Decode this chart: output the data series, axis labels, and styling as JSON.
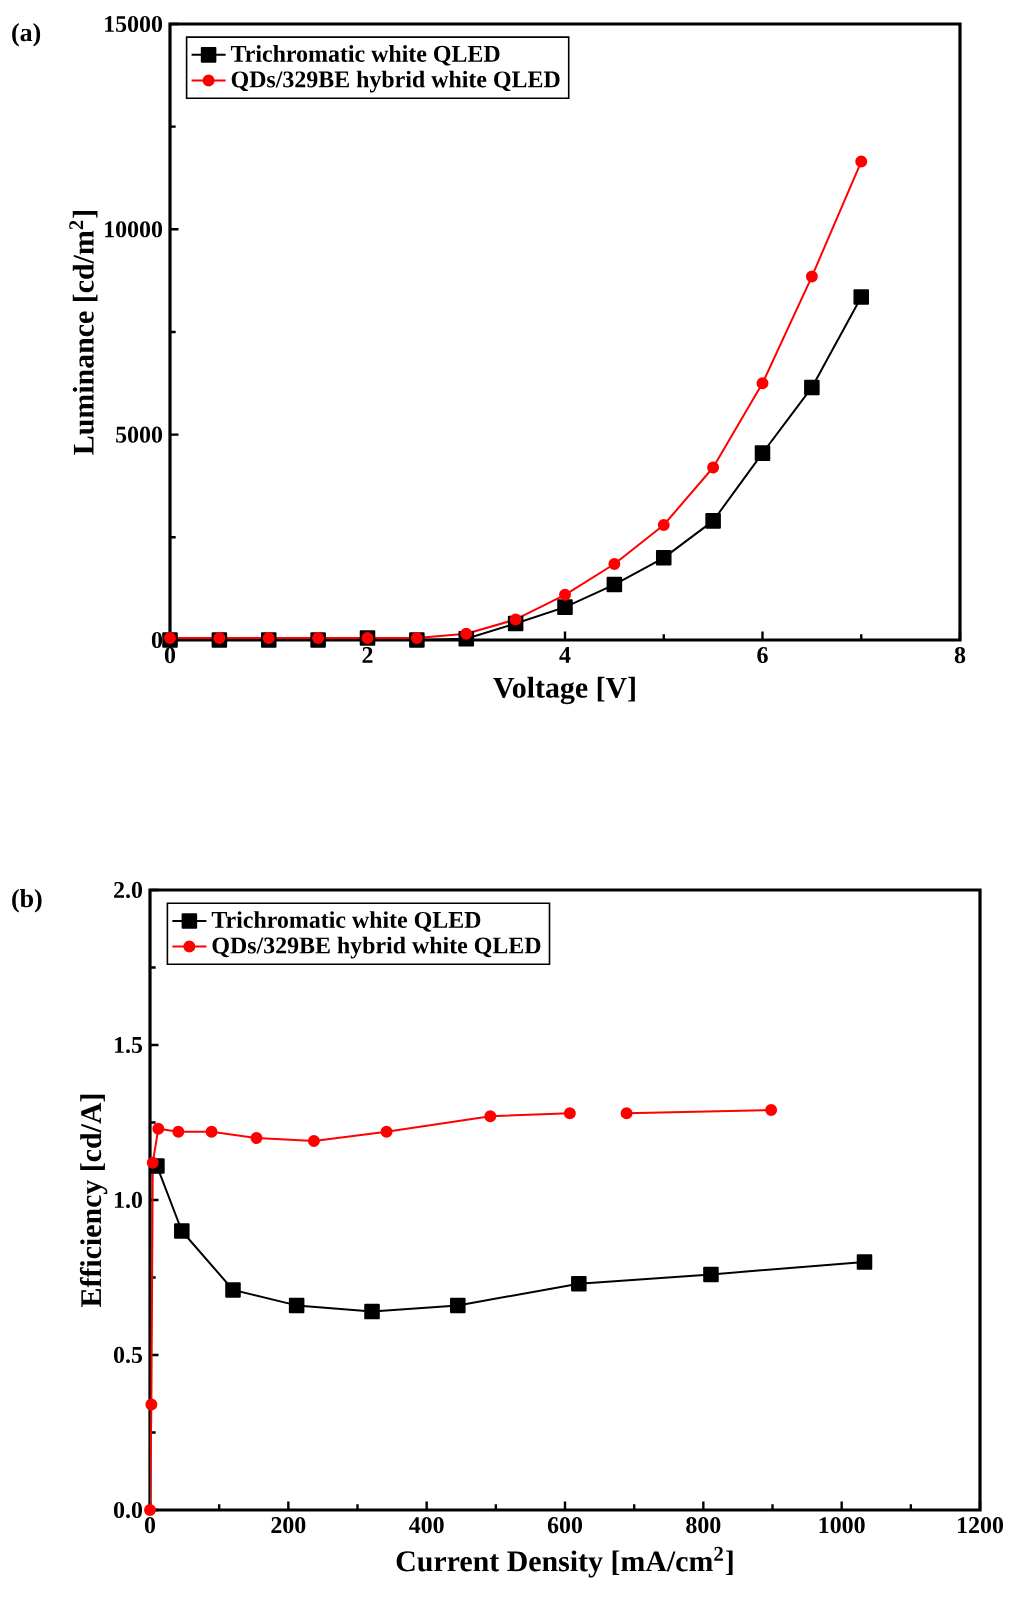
{
  "chart_data": [
    {
      "type": "line",
      "title": "(a)",
      "xlabel": "Voltage [V]",
      "ylabel": "Luminance [cd/m$^{2}$]",
      "xlim": [
        0,
        8
      ],
      "ylim": [
        0,
        15000
      ],
      "xticks": [
        0,
        2,
        4,
        6,
        8
      ],
      "yticks": [
        0,
        5000,
        10000,
        15000
      ],
      "legend": "top left",
      "grid": false,
      "x": [
        0,
        0.5,
        1,
        1.5,
        2,
        2.5,
        3,
        3.5,
        4,
        4.5,
        5,
        5.5,
        6,
        6.5,
        7
      ],
      "series": [
        {
          "name": "Trichromatic white QLED",
          "color": "#000000",
          "marker": "square",
          "values": [
            0,
            0,
            0,
            0,
            50,
            0,
            30,
            400,
            800,
            1350,
            2000,
            2900,
            4550,
            6150,
            8350
          ]
        },
        {
          "name": "QDs/329BE hybrid white QLED",
          "color": "#ff0000",
          "marker": "circle",
          "values": [
            50,
            50,
            50,
            50,
            50,
            50,
            150,
            500,
            1100,
            1850,
            2800,
            4200,
            6250,
            8850,
            11650
          ]
        }
      ]
    },
    {
      "type": "line",
      "title": "(b)",
      "xlabel": "Current Density [mA/cm$^{2}$]",
      "ylabel": "Efficiency [cd/A]",
      "xlim": [
        0,
        1200
      ],
      "ylim": [
        0,
        2
      ],
      "xticks": [
        0,
        200,
        400,
        600,
        800,
        1000,
        1200
      ],
      "yticks": [
        {
          "value": 0,
          "label": "0.0"
        },
        {
          "value": 0.5,
          "label": "0.5"
        },
        {
          "value": 1,
          "label": "1.0"
        },
        {
          "value": 1.5,
          "label": "1.5"
        },
        {
          "value": 2,
          "label": "2.0"
        }
      ],
      "legend": "top left",
      "grid": false,
      "series": [
        {
          "name": "Trichromatic white QLED",
          "color": "#000000",
          "marker": "square",
          "x": [
            10,
            46,
            120,
            212,
            321,
            445,
            620,
            811,
            1033
          ],
          "values": [
            1.11,
            0.9,
            0.71,
            0.66,
            0.64,
            0.66,
            0.73,
            0.76,
            0.8
          ]
        },
        {
          "name": "QDs/329BE hybrid white QLED",
          "color": "#ff0000",
          "marker": "circle",
          "x": [
            0,
            2,
            4,
            12,
            41,
            89,
            154,
            237,
            342,
            492,
            607,
            650,
            689,
            898
          ],
          "values": [
            0,
            0.34,
            1.12,
            1.23,
            1.22,
            1.22,
            1.2,
            1.19,
            1.22,
            1.27,
            1.28,
            null,
            1.28,
            1.29
          ]
        }
      ]
    }
  ]
}
